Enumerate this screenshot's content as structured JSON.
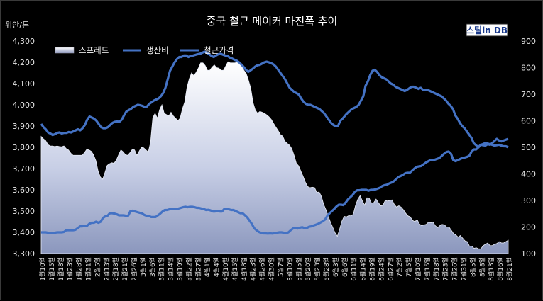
{
  "chart_data": {
    "type": "line",
    "title": "중국 철근 메이커 마진폭 추이",
    "left_axis_unit": "위안/톤",
    "logo": "스틸in DB",
    "y_left": {
      "min": 3300,
      "max": 4300,
      "ticks": [
        "3,300",
        "3,400",
        "3,500",
        "3,600",
        "3,700",
        "3,800",
        "3,900",
        "4,000",
        "4,100",
        "4,200",
        "4,300"
      ]
    },
    "y_right": {
      "min": 100,
      "max": 900,
      "ticks": [
        "100",
        "200",
        "300",
        "400",
        "500",
        "600",
        "700",
        "800",
        "900"
      ]
    },
    "x_labels": [
      "1월10일",
      "1월15일",
      "1월18일",
      "1월23일",
      "1월28일",
      "1월31일",
      "2월5일",
      "2월13일",
      "2월18일",
      "2월21일",
      "2월26일",
      "3월1일",
      "3월6일",
      "3월11일",
      "3월14일",
      "3월19일",
      "3월22일",
      "3월27일",
      "4월1일",
      "4월4일",
      "4월10일",
      "4월15일",
      "4월18일",
      "4월23일",
      "4월26일",
      "4월30일",
      "5월7일",
      "5월10일",
      "5월15일",
      "5월20일",
      "5월23일",
      "5월28일",
      "6월3일",
      "6월6일",
      "6월11일",
      "6월14일",
      "6월19일",
      "6월24일",
      "6월27일",
      "7월2일",
      "7월5일",
      "7월10일",
      "7월15일",
      "7월18일",
      "7월23일",
      "7월26일",
      "7월31일",
      "8월5일",
      "8월8일",
      "8월13일",
      "8월16일",
      "8월21일"
    ],
    "series": [
      {
        "name": "스프레드",
        "type": "area",
        "axis": "right",
        "color": "#c9d1ea",
        "values": [
          541,
          532,
          525,
          510,
          505,
          505,
          503,
          505,
          503,
          502,
          505,
          495,
          490,
          478,
          470,
          470,
          470,
          470,
          470,
          480,
          492,
          490,
          485,
          472,
          450,
          410,
          388,
          380,
          405,
          432,
          438,
          442,
          440,
          452,
          472,
          490,
          483,
          472,
          470,
          480,
          492,
          490,
          470,
          485,
          500,
          498,
          490,
          482,
          518,
          612,
          628,
          610,
          642,
          660,
          628,
          623,
          618,
          632,
          618,
          610,
          600,
          610,
          645,
          670,
          725,
          758,
          780,
          770,
          782,
          798,
          818,
          818,
          808,
          790,
          790,
          802,
          810,
          800,
          798,
          790,
          790,
          806,
          822,
          818,
          818,
          818,
          820,
          813,
          806,
          790,
          778,
          752,
          722,
          668,
          640,
          628,
          635,
          632,
          628,
          622,
          615,
          605,
          590,
          576,
          563,
          548,
          542,
          523,
          515,
          508,
          495,
          470,
          440,
          430,
          410,
          390,
          368,
          352,
          348,
          350,
          348,
          330,
          332,
          315,
          285,
          265,
          240,
          218,
          198,
          178,
          165,
          192,
          222,
          240,
          238,
          243,
          242,
          248,
          282,
          305,
          318,
          298,
          282,
          310,
          308,
          290,
          292,
          305,
          292,
          280,
          282,
          300,
          298,
          300,
          302,
          285,
          275,
          280,
          275,
          265,
          252,
          242,
          238,
          225,
          220,
          228,
          212,
          205,
          208,
          210,
          218,
          216,
          218,
          205,
          198,
          205,
          210,
          208,
          200,
          200,
          188,
          175,
          170,
          162,
          168,
          158,
          148,
          145,
          128,
          128,
          120,
          122,
          118,
          118,
          130,
          135,
          140,
          130,
          130,
          135,
          138,
          145,
          140,
          140,
          145,
          150
        ]
      },
      {
        "name": "생산비",
        "type": "line",
        "axis": "left",
        "color": "#4472c4",
        "values": [
          3400,
          3400,
          3400,
          3398,
          3398,
          3398,
          3398,
          3400,
          3400,
          3400,
          3402,
          3410,
          3410,
          3410,
          3410,
          3412,
          3420,
          3428,
          3428,
          3430,
          3430,
          3440,
          3445,
          3445,
          3450,
          3445,
          3450,
          3468,
          3475,
          3478,
          3490,
          3490,
          3488,
          3485,
          3480,
          3480,
          3480,
          3478,
          3478,
          3500,
          3502,
          3498,
          3495,
          3492,
          3490,
          3482,
          3478,
          3478,
          3472,
          3472,
          3472,
          3480,
          3488,
          3498,
          3505,
          3505,
          3508,
          3510,
          3510,
          3510,
          3512,
          3515,
          3518,
          3520,
          3518,
          3520,
          3520,
          3518,
          3515,
          3515,
          3512,
          3510,
          3505,
          3506,
          3503,
          3498,
          3498,
          3500,
          3498,
          3498,
          3510,
          3510,
          3508,
          3505,
          3505,
          3500,
          3495,
          3490,
          3490,
          3480,
          3470,
          3455,
          3440,
          3420,
          3410,
          3402,
          3398,
          3395,
          3395,
          3394,
          3395,
          3394,
          3396,
          3398,
          3400,
          3400,
          3398,
          3396,
          3400,
          3410,
          3418,
          3420,
          3418,
          3422,
          3424,
          3420,
          3420,
          3426,
          3428,
          3432,
          3436,
          3440,
          3446,
          3452,
          3460,
          3478,
          3490,
          3500,
          3510,
          3522,
          3530,
          3530,
          3528,
          3540,
          3555,
          3565,
          3575,
          3590,
          3598,
          3598,
          3600,
          3600,
          3600,
          3596,
          3600,
          3600,
          3602,
          3606,
          3610,
          3618,
          3622,
          3624,
          3630,
          3634,
          3640,
          3650,
          3660,
          3665,
          3670,
          3678,
          3680,
          3680,
          3690,
          3700,
          3708,
          3710,
          3712,
          3720,
          3728,
          3734,
          3740,
          3740,
          3742,
          3746,
          3750,
          3760,
          3770,
          3778,
          3780,
          3770,
          3740,
          3735,
          3740,
          3745,
          3750,
          3752,
          3755,
          3760,
          3780,
          3790,
          3790,
          3800,
          3812,
          3810,
          3808,
          3815,
          3812,
          3820,
          3830,
          3840,
          3832,
          3828,
          3832,
          3836,
          3840
        ]
      },
      {
        "name": "철근가격",
        "type": "line",
        "axis": "left",
        "color": "#4472c4",
        "values": [
          3910,
          3895,
          3885,
          3870,
          3865,
          3858,
          3862,
          3868,
          3870,
          3865,
          3868,
          3868,
          3872,
          3870,
          3875,
          3880,
          3885,
          3880,
          3890,
          3905,
          3930,
          3945,
          3940,
          3935,
          3925,
          3910,
          3895,
          3890,
          3890,
          3895,
          3905,
          3915,
          3920,
          3922,
          3920,
          3930,
          3950,
          3968,
          3975,
          3980,
          3990,
          3995,
          4000,
          3998,
          3995,
          3990,
          3992,
          4005,
          4012,
          4020,
          4025,
          4030,
          4040,
          4055,
          4080,
          4120,
          4160,
          4180,
          4200,
          4215,
          4225,
          4225,
          4232,
          4232,
          4225,
          4230,
          4232,
          4235,
          4238,
          4240,
          4245,
          4250,
          4245,
          4238,
          4230,
          4225,
          4232,
          4238,
          4240,
          4236,
          4232,
          4230,
          4222,
          4218,
          4212,
          4208,
          4200,
          4190,
          4178,
          4165,
          4155,
          4162,
          4170,
          4180,
          4186,
          4188,
          4194,
          4200,
          4203,
          4200,
          4196,
          4190,
          4180,
          4165,
          4150,
          4135,
          4120,
          4100,
          4080,
          4070,
          4060,
          4055,
          4048,
          4030,
          4015,
          4005,
          4000,
          4000,
          3995,
          3990,
          3985,
          3980,
          3970,
          3960,
          3945,
          3930,
          3915,
          3905,
          3900,
          3900,
          3925,
          3935,
          3948,
          3960,
          3970,
          3980,
          3985,
          3990,
          4000,
          4020,
          4040,
          4090,
          4110,
          4140,
          4160,
          4165,
          4155,
          4140,
          4130,
          4125,
          4120,
          4110,
          4100,
          4095,
          4085,
          4080,
          4075,
          4070,
          4065,
          4070,
          4078,
          4085,
          4085,
          4080,
          4075,
          4080,
          4070,
          4070,
          4070,
          4065,
          4060,
          4055,
          4050,
          4045,
          4040,
          4030,
          4020,
          4005,
          3995,
          3980,
          3950,
          3935,
          3915,
          3900,
          3890,
          3875,
          3860,
          3845,
          3820,
          3810,
          3800,
          3812,
          3815,
          3820,
          3818,
          3815,
          3812,
          3808,
          3810,
          3812,
          3808,
          3805,
          3805,
          3800
        ]
      }
    ],
    "legend": {
      "placement": "top-left",
      "entries": [
        "스프레드",
        "생산비",
        "철근가격"
      ]
    },
    "grid": false
  }
}
